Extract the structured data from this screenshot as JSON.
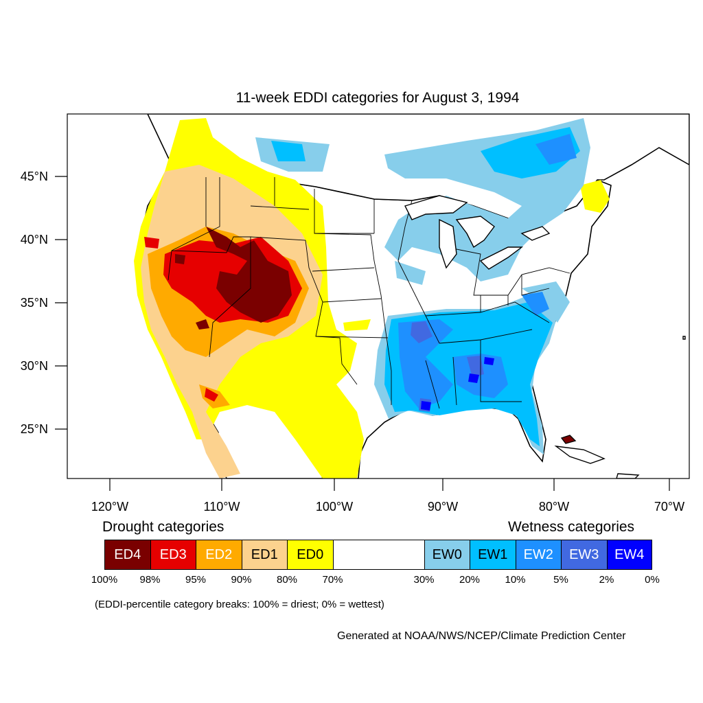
{
  "title": "11-week EDDI categories for August 3, 1994",
  "lat_labels": [
    "45°N",
    "40°N",
    "35°N",
    "30°N",
    "25°N"
  ],
  "lon_labels": [
    "120°W",
    "110°W",
    "100°W",
    "90°W",
    "80°W",
    "70°W"
  ],
  "legend": {
    "drought_title": "Drought categories",
    "wetness_title": "Wetness categories",
    "categories": [
      {
        "label": "ED4",
        "color": "#7a0000",
        "text_color": "#ffffff"
      },
      {
        "label": "ED3",
        "color": "#e60000",
        "text_color": "#ffffff"
      },
      {
        "label": "ED2",
        "color": "#ffaa00",
        "text_color": "#ffffff"
      },
      {
        "label": "ED1",
        "color": "#fcd28e",
        "text_color": "#000000"
      },
      {
        "label": "ED0",
        "color": "#ffff00",
        "text_color": "#000000"
      },
      {
        "label": "",
        "color": "#ffffff",
        "text_color": "#000000"
      },
      {
        "label": "EW0",
        "color": "#87ceeb",
        "text_color": "#000000"
      },
      {
        "label": "EW1",
        "color": "#00bfff",
        "text_color": "#000000"
      },
      {
        "label": "EW2",
        "color": "#1e90ff",
        "text_color": "#ffffff"
      },
      {
        "label": "EW3",
        "color": "#4169e1",
        "text_color": "#ffffff"
      },
      {
        "label": "EW4",
        "color": "#0000ff",
        "text_color": "#ffffff"
      }
    ],
    "breaks": [
      "100%",
      "98%",
      "95%",
      "90%",
      "80%",
      "70%",
      "30%",
      "20%",
      "10%",
      "5%",
      "2%",
      "0%"
    ]
  },
  "note": "(EDDI-percentile category breaks: 100% = driest; 0% = wettest)",
  "credit": "Generated at NOAA/NWS/NCEP/Climate Prediction Center"
}
